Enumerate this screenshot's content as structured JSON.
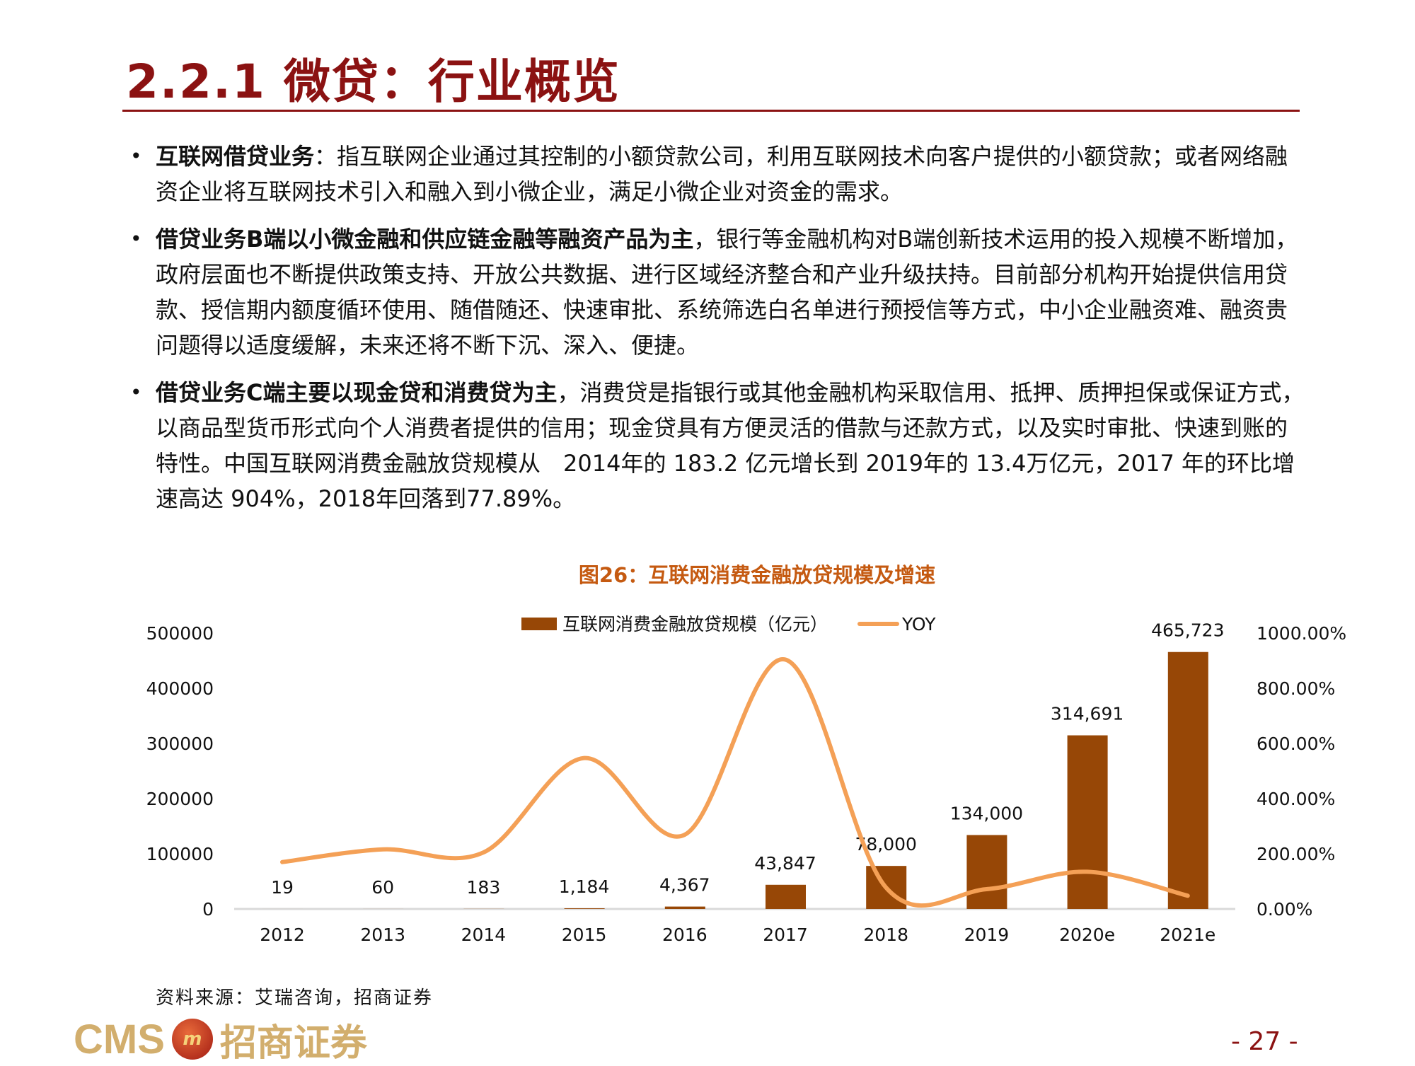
{
  "header": {
    "title": "2.2.1  微贷：行业概览"
  },
  "bullets": [
    {
      "bold": "互联网借贷业务",
      "text": "：指互联网企业通过其控制的小额贷款公司，利用互联网技术向客户提供的小额贷款；或者网络融资企业将互联网技术引入和融入到小微企业，满足小微企业对资金的需求。"
    },
    {
      "bold": "借贷业务B端以小微金融和供应链金融等融资产品为主",
      "text": "，银行等金融机构对B端创新技术运用的投入规模不断增加，政府层面也不断提供政策支持、开放公共数据、进行区域经济整合和产业升级扶持。目前部分机构开始提供信用贷款、授信期内额度循环使用、随借随还、快速审批、系统筛选白名单进行预授信等方式，中小企业融资难、融资贵问题得以适度缓解，未来还将不断下沉、深入、便捷。"
    },
    {
      "bold": "借贷业务C端主要以现金贷和消费贷为主",
      "text": "，消费贷是指银行或其他金融机构采取信用、抵押、质押担保或保证方式，以商品型货币形式向个人消费者提供的信用；现金贷具有方便灵活的借款与还款方式，以及实时审批、快速到账的特性。中国互联网消费金融放贷规模从　2014年的 183.2 亿元增长到 2019年的 13.4万亿元，2017 年的环比增速高达 904%，2018年回落到77.89%。"
    }
  ],
  "chart_data": {
    "type": "bar+line",
    "title": "图26：互联网消费金融放贷规模及增速",
    "categories": [
      "2012",
      "2013",
      "2014",
      "2015",
      "2016",
      "2017",
      "2018",
      "2019",
      "2020e",
      "2021e"
    ],
    "series": [
      {
        "name": "互联网消费金融放贷规模（亿元）",
        "type": "bar",
        "axis": "left",
        "color": "#974706",
        "values": [
          19,
          60,
          183,
          1184,
          4367,
          43847,
          78000,
          134000,
          314691,
          465723
        ],
        "labels": [
          "19",
          "60",
          "183",
          "1,184",
          "4,367",
          "43,847",
          "78,000",
          "134,000",
          "314,691",
          "465,723"
        ]
      },
      {
        "name": "YOY",
        "type": "line",
        "axis": "right",
        "color": "#F4A056",
        "values": [
          170,
          216,
          205,
          547,
          269,
          904,
          77.89,
          71.8,
          134.8,
          48
        ]
      }
    ],
    "left_axis": {
      "range": [
        0,
        500000
      ],
      "ticks": [
        "0",
        "100000",
        "200000",
        "300000",
        "400000",
        "500000"
      ]
    },
    "right_axis": {
      "range": [
        0,
        1000
      ],
      "ticks": [
        "0.00%",
        "200.00%",
        "400.00%",
        "600.00%",
        "800.00%",
        "1000.00%"
      ]
    },
    "legend": "top-center",
    "grid": false
  },
  "footer": {
    "source": "资料来源：艾瑞咨询，招商证券",
    "logo_text": "CMS 招商证券",
    "page": "- 27 -"
  }
}
